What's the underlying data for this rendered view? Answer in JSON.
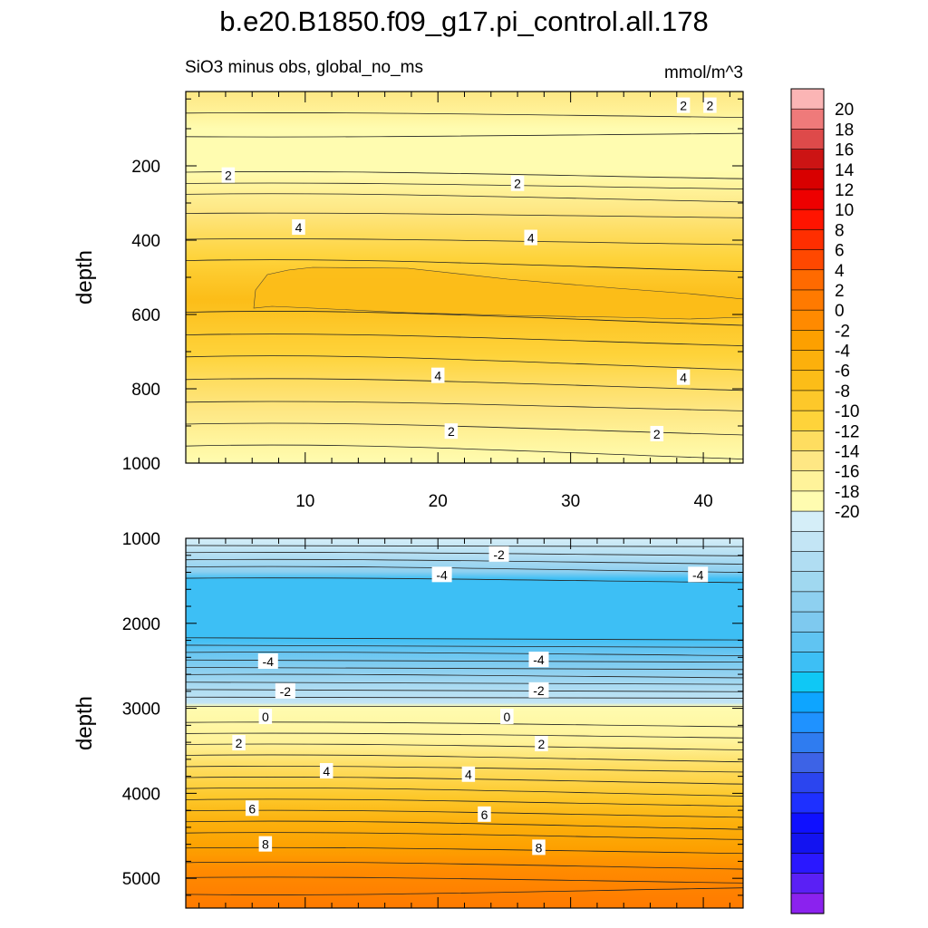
{
  "chart_data": {
    "type": "contour",
    "title": "b.e20.B1850.f09_g17.pi_control.all.178",
    "subtitle_left": "SiO3 minus obs, global_no_ms",
    "subtitle_right": "mmol/m^3",
    "ylabel": "depth",
    "x_range": [
      1,
      43
    ],
    "x_ticks": [
      10,
      20,
      30,
      40
    ],
    "x_tick_labels": [
      "10",
      "20",
      "30",
      "40"
    ],
    "colors": {
      "neg": [
        "#8b22ee",
        "#5a20f5",
        "#2a18ff",
        "#1313f0",
        "#0f10ff",
        "#1e30ff",
        "#2b45ef",
        "#3d63e6",
        "#2f7cf0",
        "#1f92ff",
        "#0ea5ff",
        "#0fc8f5",
        "#3dbff5",
        "#60c4f2",
        "#7ec9ef",
        "#8ed0f0",
        "#a0d8f0",
        "#b0ddf2",
        "#c3e5f5",
        "#d5eef8"
      ],
      "pos": [
        "#fffcb0",
        "#fff39a",
        "#fee784",
        "#fedd60",
        "#fed33a",
        "#fdc82a",
        "#fcbd18",
        "#fcb00c",
        "#fda000",
        "#ff8a00",
        "#ff7a00",
        "#ff6a00",
        "#ff4800",
        "#ff2e00",
        "#ff1400",
        "#ee0000",
        "#d80000",
        "#cc1414",
        "#de4a4a",
        "#ef7a7a",
        "#fbb5b5"
      ]
    },
    "colorbar": {
      "labels": [
        "20",
        "18",
        "16",
        "14",
        "12",
        "10",
        "8",
        "6",
        "4",
        "2",
        "0",
        "-2",
        "-4",
        "-6",
        "-8",
        "-10",
        "-12",
        "-14",
        "-16",
        "-18",
        "-20"
      ]
    },
    "panels": [
      {
        "name": "upper-0-1000m",
        "ylim": [
          0,
          1000
        ],
        "y_ticks": [
          200,
          400,
          600,
          800,
          1000
        ],
        "y_tick_labels": [
          "200",
          "400",
          "600",
          "800",
          "1000"
        ],
        "y_minor": [
          20,
          100,
          300,
          500,
          700,
          900
        ],
        "x_labels_shown": true,
        "contour_labels": [
          {
            "x": 38.5,
            "y": 38,
            "text": "2"
          },
          {
            "x": 40.5,
            "y": 38,
            "text": "2"
          },
          {
            "x": 4.2,
            "y": 226,
            "text": "2"
          },
          {
            "x": 26,
            "y": 248,
            "text": "2"
          },
          {
            "x": 9.5,
            "y": 366,
            "text": "4"
          },
          {
            "x": 27,
            "y": 394,
            "text": "4"
          },
          {
            "x": 20,
            "y": 765,
            "text": "4"
          },
          {
            "x": 38.5,
            "y": 770,
            "text": "4"
          },
          {
            "x": 21,
            "y": 915,
            "text": "2"
          },
          {
            "x": 36.5,
            "y": 922,
            "text": "2"
          }
        ]
      },
      {
        "name": "lower-1000-5350m",
        "ylim": [
          1000,
          5350
        ],
        "y_ticks": [
          1000,
          2000,
          3000,
          4000,
          5000
        ],
        "y_tick_labels": [
          "1000",
          "2000",
          "3000",
          "4000",
          "5000"
        ],
        "y_minor": [
          1200,
          1400,
          1600,
          1800,
          2200,
          2400,
          2600,
          2800,
          3200,
          3400,
          3600,
          3800,
          4200,
          4400,
          4600,
          4800,
          5200
        ],
        "x_labels_shown": false,
        "contour_labels": [
          {
            "x": 24.6,
            "y": 1190,
            "text": "-2"
          },
          {
            "x": 20.3,
            "y": 1430,
            "text": "-4"
          },
          {
            "x": 39.6,
            "y": 1430,
            "text": "-4"
          },
          {
            "x": 7.2,
            "y": 2450,
            "text": "-4"
          },
          {
            "x": 27.6,
            "y": 2430,
            "text": "-4"
          },
          {
            "x": 8.5,
            "y": 2800,
            "text": "-2"
          },
          {
            "x": 27.6,
            "y": 2790,
            "text": "-2"
          },
          {
            "x": 7.0,
            "y": 3100,
            "text": "0"
          },
          {
            "x": 25.2,
            "y": 3100,
            "text": "0"
          },
          {
            "x": 5.0,
            "y": 3410,
            "text": "2"
          },
          {
            "x": 27.8,
            "y": 3420,
            "text": "2"
          },
          {
            "x": 11.6,
            "y": 3740,
            "text": "4"
          },
          {
            "x": 22.3,
            "y": 3780,
            "text": "4"
          },
          {
            "x": 6.0,
            "y": 4180,
            "text": "6"
          },
          {
            "x": 23.5,
            "y": 4250,
            "text": "6"
          },
          {
            "x": 7.0,
            "y": 4600,
            "text": "8"
          },
          {
            "x": 27.6,
            "y": 4640,
            "text": "8"
          }
        ]
      }
    ]
  }
}
